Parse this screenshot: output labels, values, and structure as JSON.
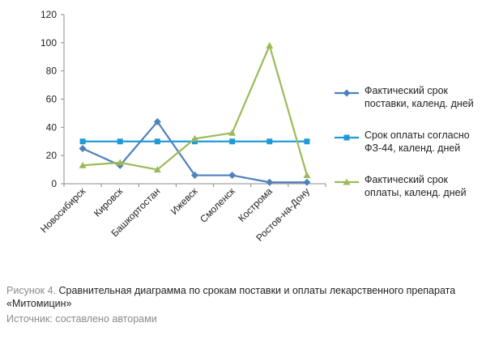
{
  "chart_data": {
    "type": "line",
    "categories": [
      "Новосибирск",
      "Кировск",
      "Башкортостан",
      "Ижевск",
      "Смоленск",
      "Кострома",
      "Ростов-на-Дону"
    ],
    "ylim": [
      0,
      120
    ],
    "yticks": [
      0,
      20,
      40,
      60,
      80,
      100,
      120
    ],
    "grid": false,
    "legend_position": "right",
    "series": [
      {
        "name": "Фактический срок поставки, календ. дней",
        "values": [
          25,
          13,
          44,
          6,
          6,
          1,
          1
        ],
        "color": "#4f81bd",
        "marker": "diamond"
      },
      {
        "name": "Срок оплаты согласно ФЗ-44, календ. дней",
        "values": [
          30,
          30,
          30,
          30,
          30,
          30,
          30
        ],
        "color": "#1f9ad6",
        "marker": "square"
      },
      {
        "name": "Фактический срок оплаты, календ. дней",
        "values": [
          13,
          15,
          10,
          32,
          36,
          98,
          6
        ],
        "color": "#9bbb59",
        "marker": "triangle"
      }
    ]
  },
  "caption": {
    "label": "Рисунок 4.",
    "title": "Сравнительная диаграмма по срокам поставки и оплаты лекарственного препарата «Митомицин»",
    "source": "Источник: составлено авторами"
  }
}
